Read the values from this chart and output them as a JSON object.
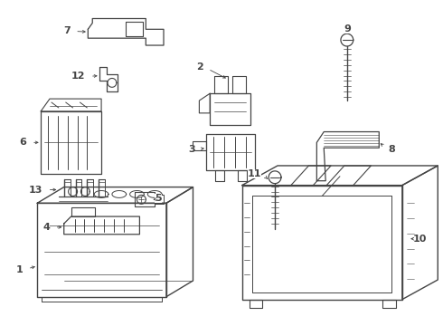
{
  "background_color": "#ffffff",
  "line_color": "#444444",
  "label_color": "#000000",
  "figsize": [
    4.9,
    3.6
  ],
  "dpi": 100,
  "lw": 0.8
}
